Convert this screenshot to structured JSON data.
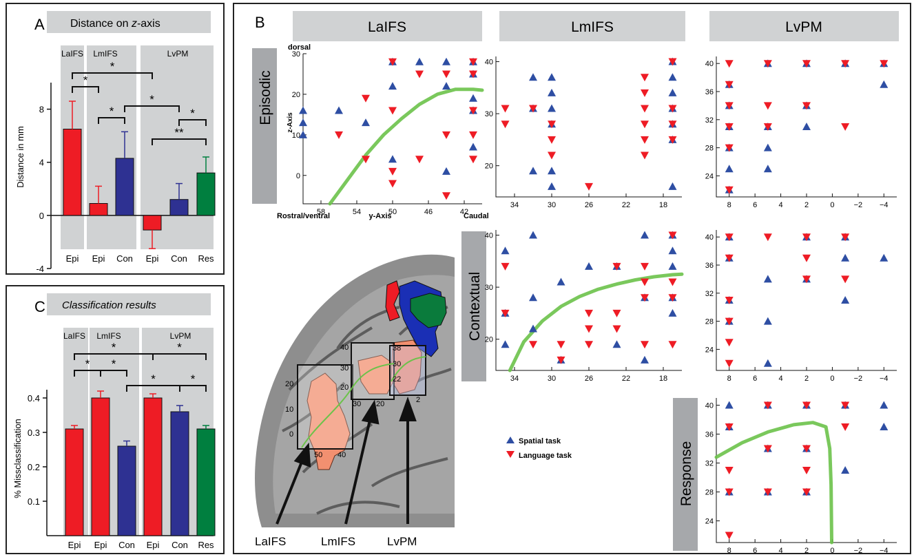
{
  "panel_a": {
    "letter": "A",
    "title": "Distance on z-axis",
    "title_prefix": "Distance on ",
    "title_italic": "z",
    "title_suffix": "-axis",
    "group_labels": [
      "LaIFS",
      "LmIFS",
      "LvPM"
    ],
    "ylabel": "Distance in mm",
    "y_ticks": [
      "8",
      "4",
      "0",
      "-4"
    ],
    "colors": {
      "red": "#ee1c25",
      "blue": "#2e3192",
      "green": "#007f3f",
      "band": "#d0d2d3"
    }
  },
  "panel_c": {
    "letter": "C",
    "title": "Classification results",
    "group_labels": [
      "LaIFS",
      "LmIFS",
      "LvPM"
    ],
    "ylabel": "% Missclassification",
    "y_ticks": [
      "0.4",
      "0.3",
      "0.2",
      "0.1"
    ]
  },
  "panel_b": {
    "letter": "B",
    "column_headers": [
      "LaIFS",
      "LmIFS",
      "LvPM"
    ],
    "row_labels": [
      "Episodic",
      "Contextual",
      "Response"
    ],
    "axis_text": {
      "dorsal": "dorsal",
      "z_axis": "z-Axis",
      "y_axis": "y-Axis",
      "rostral": "Rostral/ventral",
      "caudal": "Caudal"
    },
    "legend": {
      "spatial": "Spatial task",
      "language": "Language task"
    },
    "brain_labels": [
      "LaIFS",
      "LmIFS",
      "LvPM"
    ],
    "brain_box_ticks": {
      "box1_y": [
        "20",
        "10",
        "0"
      ],
      "box1_x": [
        "50",
        "40"
      ],
      "box2_y": [
        "40",
        "30",
        "20"
      ],
      "box2_x": [
        "30",
        "20"
      ],
      "box3_y": [
        "38",
        "30",
        "22"
      ],
      "box3_x": [
        "2"
      ]
    },
    "colors": {
      "spatial": "#2e4ea3",
      "language": "#ee1c25",
      "fit": "#6cc24a",
      "header": "#d0d2d3",
      "rowlabel": "#a6a8ab"
    }
  },
  "chart_data": [
    {
      "id": "A",
      "type": "bar",
      "title": "Distance on z-axis",
      "ylabel": "Distance in mm",
      "ylim": [
        -4,
        10
      ],
      "categories": [
        "Epi",
        "Epi",
        "Con",
        "Epi",
        "Con",
        "Res"
      ],
      "groups": [
        "LaIFS",
        "LmIFS",
        "LmIFS",
        "LvPM",
        "LvPM",
        "LvPM"
      ],
      "values": [
        6.5,
        0.9,
        4.3,
        -1.1,
        1.2,
        3.2
      ],
      "errors": [
        2.1,
        1.3,
        2.0,
        1.4,
        1.2,
        1.2
      ],
      "bar_colors": [
        "#ee1c25",
        "#ee1c25",
        "#2e3192",
        "#ee1c25",
        "#2e3192",
        "#007f3f"
      ],
      "significance": [
        {
          "from": 0,
          "to": 3,
          "label": "*"
        },
        {
          "from": 0,
          "to": 1,
          "label": "*"
        },
        {
          "from": 1,
          "to": 2,
          "label": "*"
        },
        {
          "from": 2,
          "to": 4,
          "label": "*"
        },
        {
          "from": 4,
          "to": 5,
          "label": "*"
        },
        {
          "from": 3,
          "to": 5,
          "label": "**"
        }
      ]
    },
    {
      "id": "C",
      "type": "bar",
      "title": "Classification results",
      "ylabel": "% Missclassification",
      "ylim": [
        0,
        0.45
      ],
      "categories": [
        "Epi",
        "Epi",
        "Con",
        "Epi",
        "Con",
        "Res"
      ],
      "groups": [
        "LaIFS",
        "LmIFS",
        "LmIFS",
        "LvPM",
        "LvPM",
        "LvPM"
      ],
      "values": [
        0.31,
        0.4,
        0.26,
        0.4,
        0.36,
        0.31
      ],
      "errors": [
        0.01,
        0.02,
        0.015,
        0.012,
        0.018,
        0.01
      ],
      "bar_colors": [
        "#ee1c25",
        "#ee1c25",
        "#2e3192",
        "#ee1c25",
        "#2e3192",
        "#007f3f"
      ],
      "significance": [
        {
          "from": 0,
          "to": 3,
          "label": "*"
        },
        {
          "from": 3,
          "to": 5,
          "label": "*"
        },
        {
          "from": 0,
          "to": 1,
          "label": "*"
        },
        {
          "from": 1,
          "to": 2,
          "label": "*"
        },
        {
          "from": 2,
          "to": 4,
          "label": "*"
        },
        {
          "from": 4,
          "to": 5,
          "label": "*"
        }
      ]
    },
    {
      "id": "B-LaIFS-Episodic",
      "type": "scatter",
      "xlabel": "y-Axis",
      "ylabel": "z-Axis",
      "xlim": [
        60,
        40
      ],
      "ylim": [
        -7,
        30
      ],
      "x_ticks": [
        58,
        54,
        50,
        46,
        42
      ],
      "y_ticks": [
        0,
        10,
        20,
        30
      ],
      "spatial": [
        [
          60,
          16
        ],
        [
          60,
          13
        ],
        [
          60,
          10
        ],
        [
          56,
          16
        ],
        [
          53,
          13
        ],
        [
          50,
          28
        ],
        [
          50,
          22
        ],
        [
          50,
          4
        ],
        [
          47,
          28
        ],
        [
          44,
          28
        ],
        [
          44,
          22
        ],
        [
          44,
          1
        ],
        [
          41,
          28
        ],
        [
          41,
          25
        ],
        [
          41,
          19
        ],
        [
          41,
          16
        ],
        [
          41,
          7
        ]
      ],
      "language": [
        [
          56,
          10
        ],
        [
          53,
          19
        ],
        [
          53,
          4
        ],
        [
          50,
          28
        ],
        [
          50,
          16
        ],
        [
          50,
          1
        ],
        [
          50,
          -2
        ],
        [
          47,
          25
        ],
        [
          47,
          4
        ],
        [
          44,
          25
        ],
        [
          44,
          10
        ],
        [
          44,
          -5
        ],
        [
          41,
          28
        ],
        [
          41,
          25
        ],
        [
          41,
          16
        ],
        [
          41,
          10
        ],
        [
          41,
          4
        ]
      ],
      "fit": [
        [
          57,
          -7
        ],
        [
          55,
          -1
        ],
        [
          53,
          5
        ],
        [
          51,
          10
        ],
        [
          49,
          14
        ],
        [
          47,
          17.5
        ],
        [
          45,
          20
        ],
        [
          43,
          21.2
        ],
        [
          41,
          21.2
        ],
        [
          40,
          21
        ]
      ]
    },
    {
      "id": "B-LmIFS-Episodic",
      "type": "scatter",
      "xlim": [
        36,
        16
      ],
      "ylim": [
        14,
        41
      ],
      "x_ticks": [
        34,
        30,
        26,
        22,
        18
      ],
      "y_ticks": [
        20,
        30,
        40
      ],
      "spatial": [
        [
          32,
          37
        ],
        [
          32,
          31
        ],
        [
          32,
          19
        ],
        [
          30,
          37
        ],
        [
          30,
          34
        ],
        [
          30,
          31
        ],
        [
          30,
          28
        ],
        [
          30,
          19
        ],
        [
          30,
          16
        ],
        [
          17,
          40
        ],
        [
          17,
          37
        ],
        [
          17,
          34
        ],
        [
          17,
          31
        ],
        [
          17,
          28
        ],
        [
          17,
          25
        ],
        [
          17,
          16
        ]
      ],
      "language": [
        [
          35,
          31
        ],
        [
          35,
          28
        ],
        [
          32,
          31
        ],
        [
          30,
          28
        ],
        [
          30,
          25
        ],
        [
          30,
          22
        ],
        [
          26,
          16
        ],
        [
          20,
          37
        ],
        [
          20,
          34
        ],
        [
          20,
          31
        ],
        [
          20,
          28
        ],
        [
          20,
          25
        ],
        [
          20,
          22
        ],
        [
          17,
          40
        ],
        [
          17,
          31
        ],
        [
          17,
          28
        ],
        [
          17,
          25
        ]
      ]
    },
    {
      "id": "B-LvPM-Episodic",
      "type": "scatter",
      "xlim": [
        9,
        -5
      ],
      "ylim": [
        21,
        41
      ],
      "x_ticks": [
        8,
        6,
        4,
        2,
        0,
        -2,
        -4
      ],
      "y_ticks": [
        24,
        28,
        32,
        36,
        40
      ],
      "spatial": [
        [
          8,
          37
        ],
        [
          8,
          34
        ],
        [
          8,
          31
        ],
        [
          8,
          28
        ],
        [
          8,
          25
        ],
        [
          8,
          22
        ],
        [
          5,
          40
        ],
        [
          5,
          31
        ],
        [
          5,
          28
        ],
        [
          5,
          25
        ],
        [
          2,
          40
        ],
        [
          2,
          34
        ],
        [
          2,
          31
        ],
        [
          -1,
          40
        ],
        [
          -4,
          40
        ],
        [
          -4,
          37
        ]
      ],
      "language": [
        [
          8,
          40
        ],
        [
          8,
          37
        ],
        [
          8,
          34
        ],
        [
          8,
          31
        ],
        [
          8,
          28
        ],
        [
          8,
          22
        ],
        [
          5,
          40
        ],
        [
          5,
          34
        ],
        [
          5,
          31
        ],
        [
          2,
          40
        ],
        [
          2,
          34
        ],
        [
          -1,
          40
        ],
        [
          -1,
          31
        ],
        [
          -4,
          40
        ]
      ]
    },
    {
      "id": "B-LmIFS-Contextual",
      "type": "scatter",
      "xlim": [
        36,
        16
      ],
      "ylim": [
        14,
        41
      ],
      "x_ticks": [
        34,
        30,
        26,
        22,
        18
      ],
      "y_ticks": [
        20,
        30,
        40
      ],
      "spatial": [
        [
          35,
          37
        ],
        [
          35,
          25
        ],
        [
          35,
          19
        ],
        [
          32,
          40
        ],
        [
          32,
          28
        ],
        [
          32,
          22
        ],
        [
          29,
          31
        ],
        [
          29,
          16
        ],
        [
          26,
          34
        ],
        [
          23,
          34
        ],
        [
          23,
          19
        ],
        [
          20,
          40
        ],
        [
          20,
          28
        ],
        [
          20,
          16
        ],
        [
          17,
          40
        ],
        [
          17,
          37
        ],
        [
          17,
          34
        ],
        [
          17,
          28
        ],
        [
          17,
          25
        ]
      ],
      "language": [
        [
          35,
          34
        ],
        [
          35,
          25
        ],
        [
          32,
          19
        ],
        [
          29,
          19
        ],
        [
          29,
          16
        ],
        [
          26,
          25
        ],
        [
          26,
          22
        ],
        [
          26,
          19
        ],
        [
          23,
          34
        ],
        [
          23,
          25
        ],
        [
          23,
          22
        ],
        [
          20,
          34
        ],
        [
          20,
          31
        ],
        [
          20,
          28
        ],
        [
          20,
          19
        ],
        [
          17,
          40
        ],
        [
          17,
          31
        ],
        [
          17,
          28
        ],
        [
          17,
          19
        ]
      ],
      "fit": [
        [
          34.5,
          14
        ],
        [
          33,
          19.5
        ],
        [
          31,
          23.5
        ],
        [
          29,
          26.3
        ],
        [
          27,
          28.2
        ],
        [
          25,
          29.6
        ],
        [
          23,
          30.6
        ],
        [
          21,
          31.4
        ],
        [
          19,
          32
        ],
        [
          17,
          32.4
        ],
        [
          16,
          32.5
        ]
      ]
    },
    {
      "id": "B-LvPM-Contextual",
      "type": "scatter",
      "xlim": [
        9,
        -5
      ],
      "ylim": [
        21,
        41
      ],
      "x_ticks": [
        8,
        6,
        4,
        2,
        0,
        -2,
        -4
      ],
      "y_ticks": [
        24,
        28,
        32,
        36,
        40
      ],
      "spatial": [
        [
          8,
          40
        ],
        [
          8,
          37
        ],
        [
          8,
          31
        ],
        [
          8,
          28
        ],
        [
          5,
          34
        ],
        [
          5,
          28
        ],
        [
          5,
          22
        ],
        [
          2,
          40
        ],
        [
          2,
          34
        ],
        [
          -1,
          40
        ],
        [
          -1,
          37
        ],
        [
          -1,
          31
        ],
        [
          -4,
          37
        ]
      ],
      "language": [
        [
          8,
          40
        ],
        [
          8,
          37
        ],
        [
          8,
          31
        ],
        [
          8,
          28
        ],
        [
          8,
          25
        ],
        [
          8,
          22
        ],
        [
          5,
          40
        ],
        [
          2,
          40
        ],
        [
          2,
          37
        ],
        [
          2,
          34
        ],
        [
          -1,
          40
        ],
        [
          -1,
          34
        ]
      ]
    },
    {
      "id": "B-LvPM-Response",
      "type": "scatter",
      "xlim": [
        9,
        -5
      ],
      "ylim": [
        21,
        41
      ],
      "x_ticks": [
        8,
        6,
        4,
        2,
        0,
        -2,
        -4
      ],
      "y_ticks": [
        24,
        28,
        32,
        36,
        40
      ],
      "spatial": [
        [
          8,
          40
        ],
        [
          8,
          37
        ],
        [
          8,
          28
        ],
        [
          5,
          40
        ],
        [
          5,
          34
        ],
        [
          5,
          28
        ],
        [
          2,
          40
        ],
        [
          2,
          34
        ],
        [
          2,
          28
        ],
        [
          -1,
          40
        ],
        [
          -1,
          31
        ],
        [
          -4,
          40
        ],
        [
          -4,
          37
        ]
      ],
      "language": [
        [
          8,
          37
        ],
        [
          8,
          31
        ],
        [
          8,
          28
        ],
        [
          8,
          22
        ],
        [
          5,
          40
        ],
        [
          5,
          34
        ],
        [
          5,
          28
        ],
        [
          2,
          40
        ],
        [
          2,
          34
        ],
        [
          2,
          31
        ],
        [
          2,
          28
        ],
        [
          -1,
          40
        ],
        [
          -1,
          37
        ]
      ],
      "fit": [
        [
          9,
          32.8
        ],
        [
          7,
          34.8
        ],
        [
          5,
          36.3
        ],
        [
          3,
          37.3
        ],
        [
          1.5,
          37.6
        ],
        [
          0.5,
          37
        ],
        [
          0.2,
          34
        ],
        [
          0.1,
          29
        ],
        [
          0.05,
          21
        ]
      ]
    }
  ]
}
